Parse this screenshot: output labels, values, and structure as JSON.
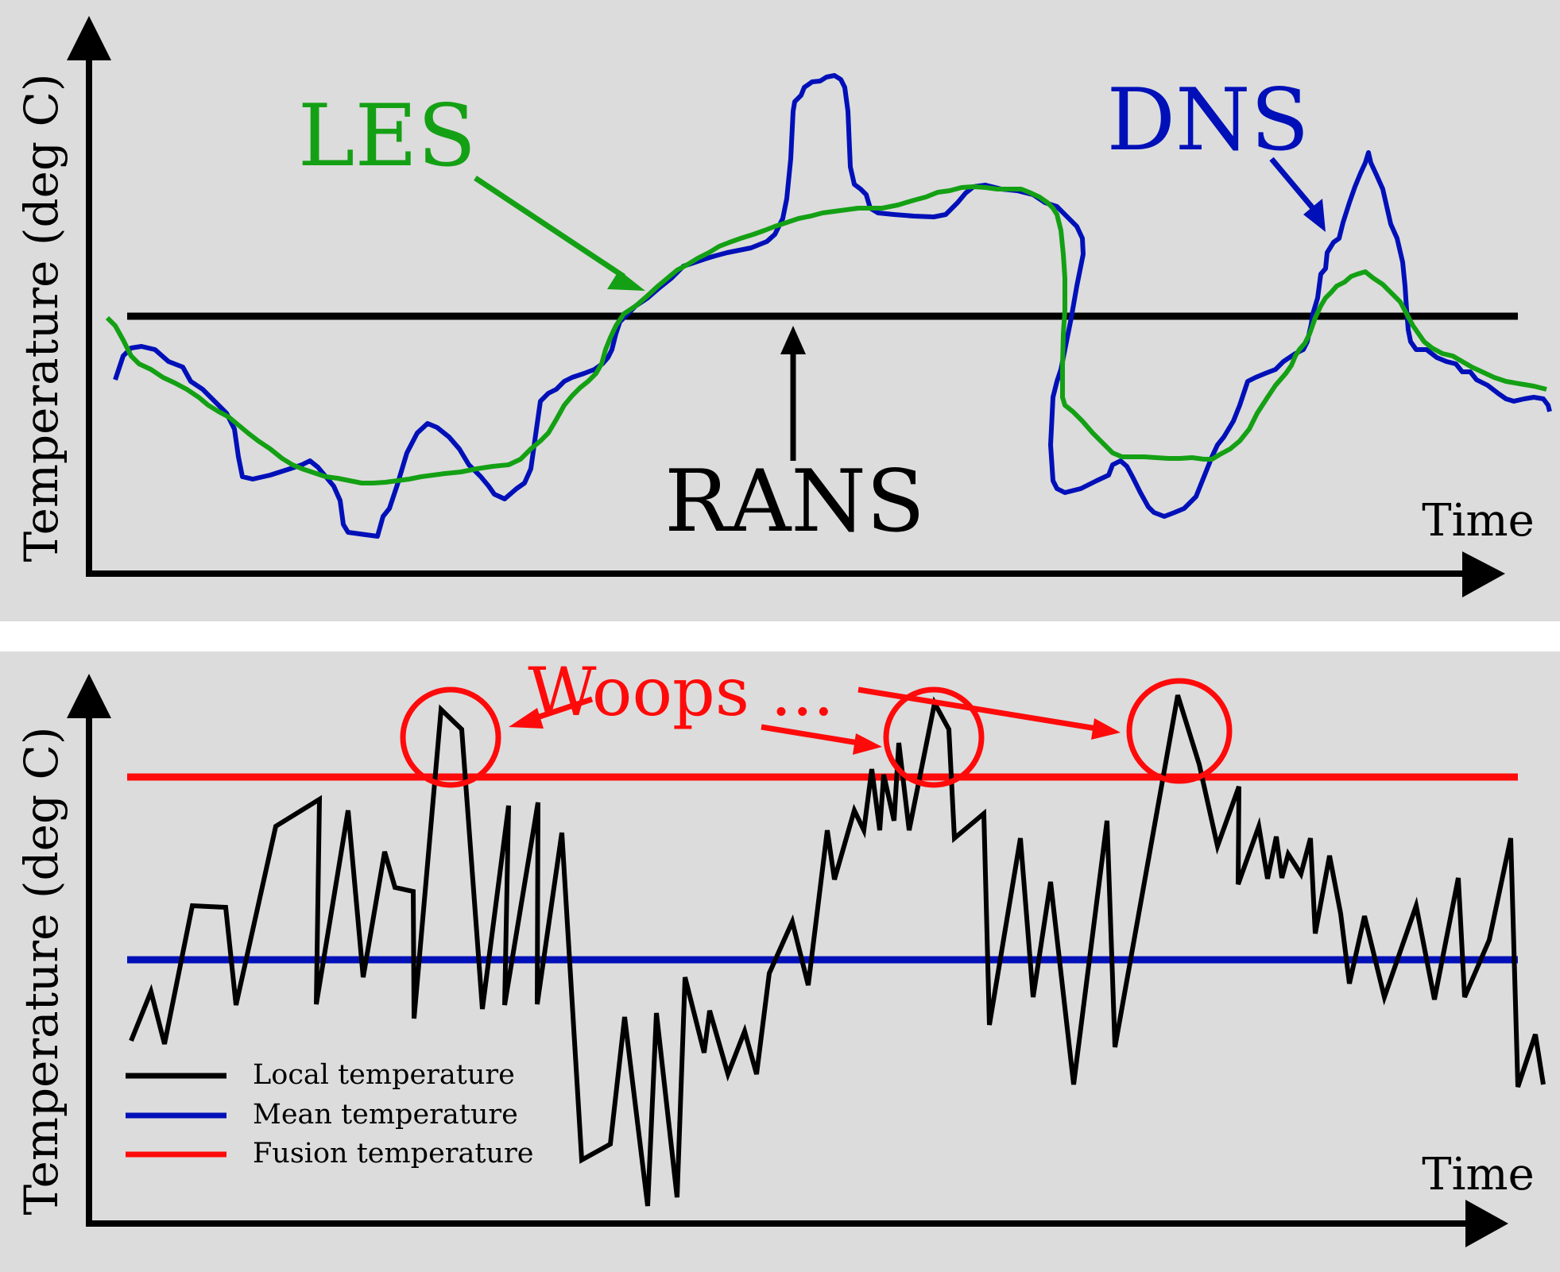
{
  "colors": {
    "panel_bg": "#dcdcdc",
    "axis": "#000000",
    "dns": "#0010b8",
    "les": "#14a014",
    "rans": "#000000",
    "fusion": "#ff0a0a",
    "mean": "#0010b8",
    "local": "#000000",
    "woops": "#ff0a0a"
  },
  "top_panel": {
    "y_label": "Temperature (deg C)",
    "x_label": "Time",
    "labels": {
      "les": "LES",
      "dns": "DNS",
      "rans": "RANS"
    }
  },
  "bottom_panel": {
    "y_label": "Temperature (deg C)",
    "x_label": "Time",
    "annotation": "Woops ...",
    "legend": [
      {
        "key": "local",
        "label": "Local temperature",
        "color": "#000000"
      },
      {
        "key": "mean",
        "label": "Mean temperature",
        "color": "#0010b8"
      },
      {
        "key": "fusion",
        "label": "Fusion temperature",
        "color": "#ff0a0a"
      }
    ]
  }
}
